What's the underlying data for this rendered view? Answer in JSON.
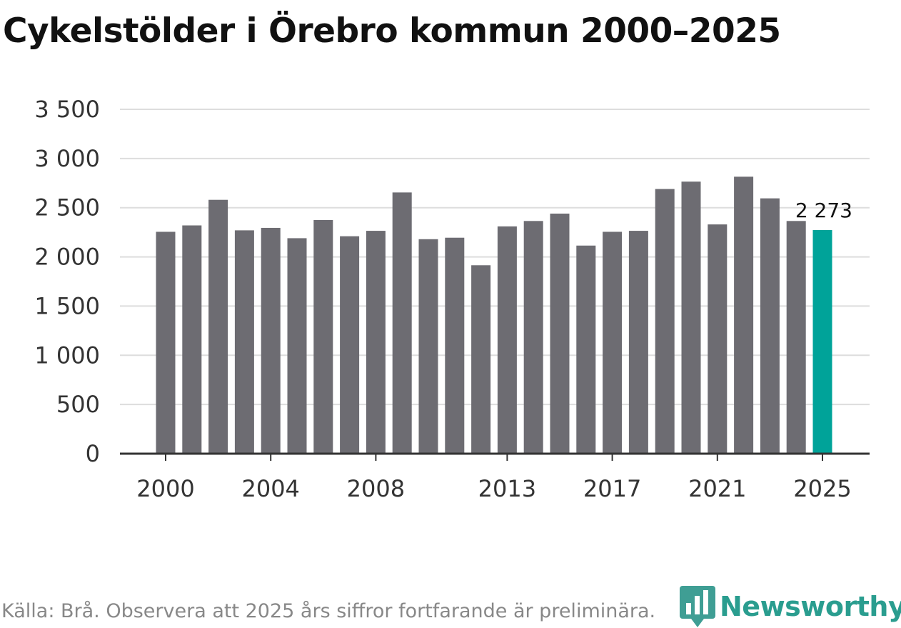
{
  "title": "Cykelstölder i Örebro kommun 2000–2025",
  "source": "Källa: Brå. Observera att 2025 års siffror fortfarande är preliminära.",
  "brand": "Newsworthy",
  "colors": {
    "bar": "#6d6c72",
    "highlight": "#00a399",
    "grid": "#dddddd",
    "axis": "#333333",
    "brand": "#2a9d8f"
  },
  "chart_data": {
    "type": "bar",
    "categories": [
      "2000",
      "2001",
      "2002",
      "2003",
      "2004",
      "2005",
      "2006",
      "2007",
      "2008",
      "2009",
      "2010",
      "2011",
      "2012",
      "2013",
      "2014",
      "2015",
      "2016",
      "2017",
      "2018",
      "2019",
      "2020",
      "2021",
      "2022",
      "2023",
      "2024",
      "2025"
    ],
    "values": [
      2255,
      2320,
      2580,
      2270,
      2295,
      2190,
      2375,
      2210,
      2265,
      2655,
      2180,
      2195,
      1915,
      2310,
      2365,
      2440,
      2115,
      2255,
      2265,
      2690,
      2765,
      2330,
      2815,
      2595,
      2365,
      2273
    ],
    "highlight_index": 25,
    "highlight_label": "2 273",
    "x_tick_labels": [
      "2000",
      "2004",
      "2008",
      "2013",
      "2017",
      "2021",
      "2025"
    ],
    "y_ticks": [
      0,
      500,
      1000,
      1500,
      2000,
      2500,
      3000,
      3500
    ],
    "y_tick_labels": [
      "0",
      "500",
      "1 000",
      "1 500",
      "2 000",
      "2 500",
      "3 000",
      "3 500"
    ],
    "ylim": [
      0,
      3500
    ],
    "grid": true,
    "legend": "none"
  }
}
